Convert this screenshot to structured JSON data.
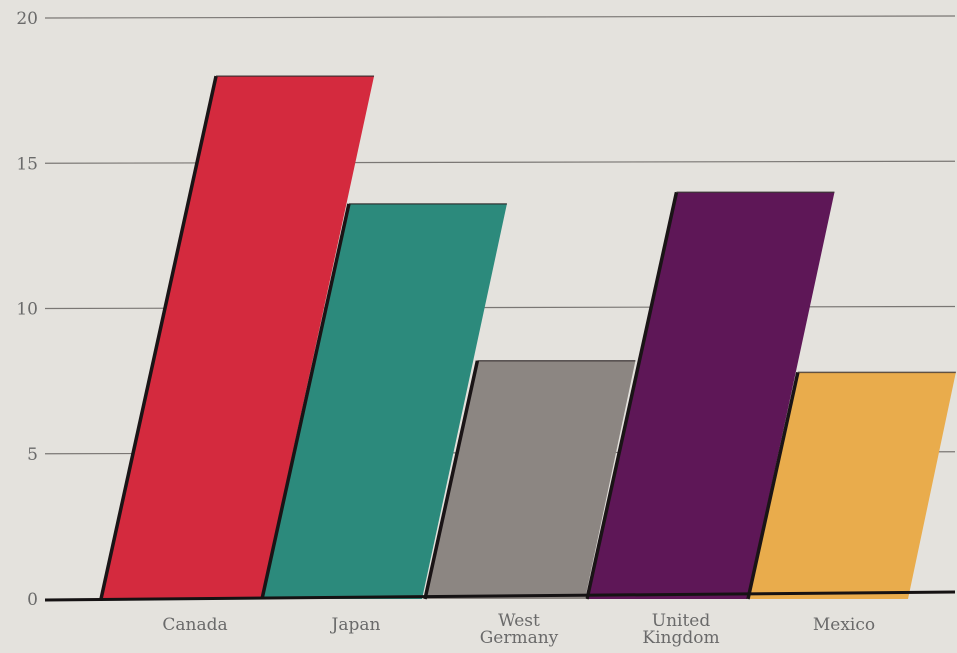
{
  "chart_data": {
    "type": "bar",
    "categories": [
      "Canada",
      "Japan",
      "West Germany",
      "United Kingdom",
      "Mexico"
    ],
    "category_label_lines": [
      [
        "Canada"
      ],
      [
        "Japan"
      ],
      [
        "West",
        "Germany"
      ],
      [
        "United",
        "Kingdom"
      ],
      [
        "Mexico"
      ]
    ],
    "values": [
      18,
      13.6,
      8.2,
      14,
      7.8
    ],
    "colors": [
      "#d42a3e",
      "#2c8a7c",
      "#8c8682",
      "#5e1757",
      "#e9ac4c"
    ],
    "ylim": [
      0,
      20
    ],
    "yticks": [
      0,
      5,
      10,
      15,
      20
    ],
    "grid": true,
    "title": "",
    "xlabel": "",
    "ylabel": ""
  }
}
